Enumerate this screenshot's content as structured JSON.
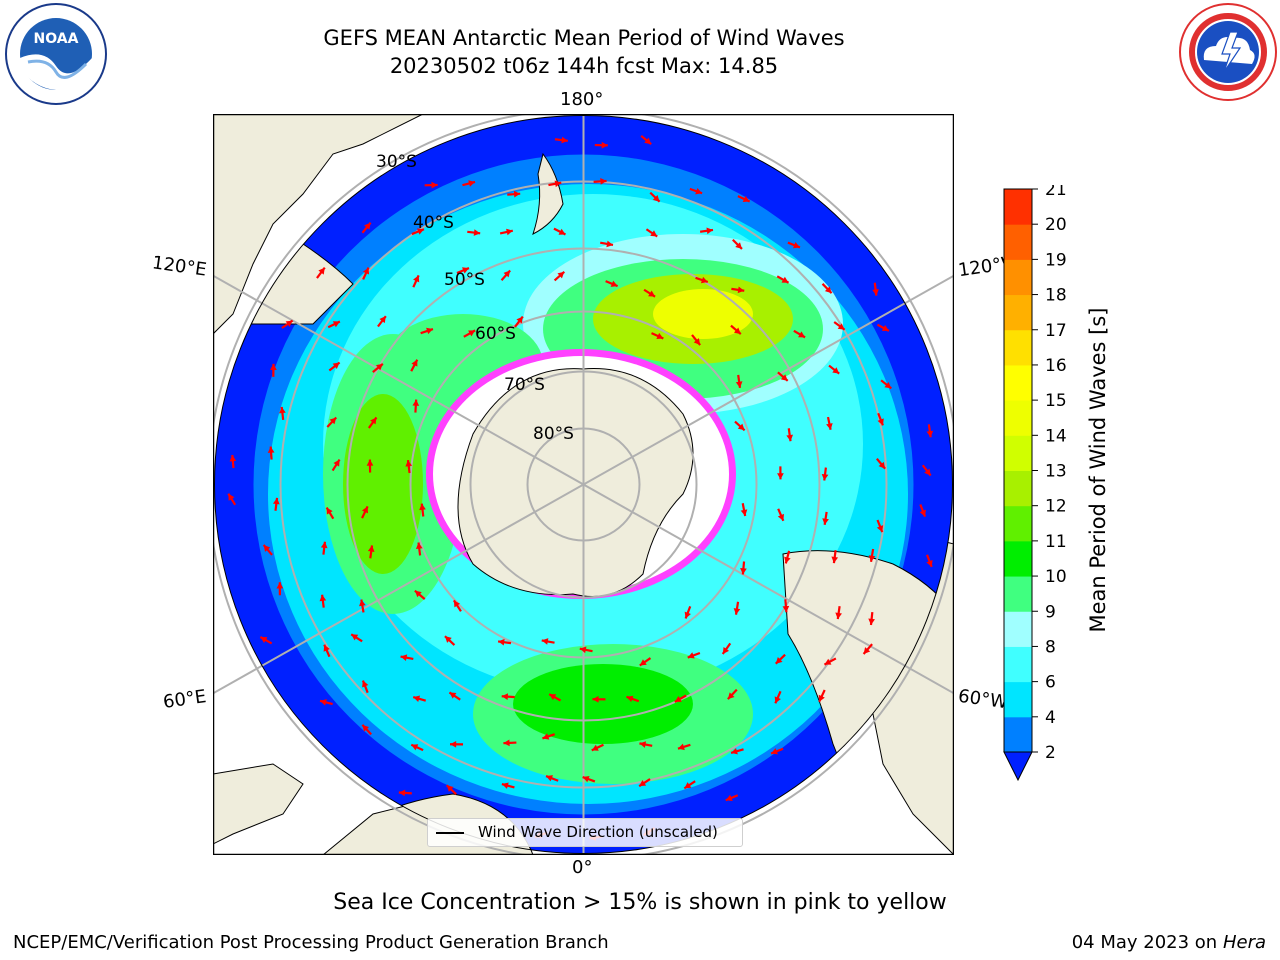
{
  "header": {
    "title_line1": "GEFS MEAN Antarctic Mean Period of Wind Waves",
    "title_line2": "20230502 t06z 144h fcst   Max: 14.85"
  },
  "logos": {
    "noaa_text": "NOAA",
    "noaa_ring": "NATIONAL OCEANIC AND ATMOSPHERIC ADMINISTRATION · U.S. DEPARTMENT OF COMMERCE",
    "nws_ring": "NATIONAL WEATHER SERVICE"
  },
  "map": {
    "projection": "south polar stereographic",
    "longitude_labels": {
      "top": "180°",
      "bottom": "0°",
      "left_upper": "120°E",
      "left_lower": "60°E",
      "right_upper": "120°W",
      "right_lower": "60°W"
    },
    "latitude_labels": [
      "30°S",
      "40°S",
      "50°S",
      "60°S",
      "70°S",
      "80°S"
    ],
    "legend_label": "Wind Wave Direction (unscaled)",
    "colors": {
      "land": "#efeddc",
      "gridline": "#b0b0b0",
      "arrow": "#ff0000",
      "sea_ice": "#ff40ff"
    }
  },
  "colorbar": {
    "label": "Mean Period of Wind Waves [s]",
    "ticks": [
      "2",
      "4",
      "6",
      "8",
      "9",
      "10",
      "11",
      "12",
      "13",
      "14",
      "15",
      "16",
      "17",
      "18",
      "19",
      "20",
      "21"
    ],
    "colors": [
      "#0080ff",
      "#00e5ff",
      "#40ffff",
      "#a0ffff",
      "#40ff80",
      "#00ee00",
      "#60f000",
      "#a8f000",
      "#d0ff00",
      "#eeff00",
      "#ffff00",
      "#ffe000",
      "#ffb000",
      "#ff9000",
      "#ff6000",
      "#ff3000"
    ],
    "under_color": "#0020ff"
  },
  "footer": {
    "note": "Sea Ice Concentration > 15% is shown in pink to yellow",
    "credit": "NCEP/EMC/Verification Post Processing Product Generation Branch",
    "date": "04 May 2023 on",
    "host": "Hera"
  }
}
